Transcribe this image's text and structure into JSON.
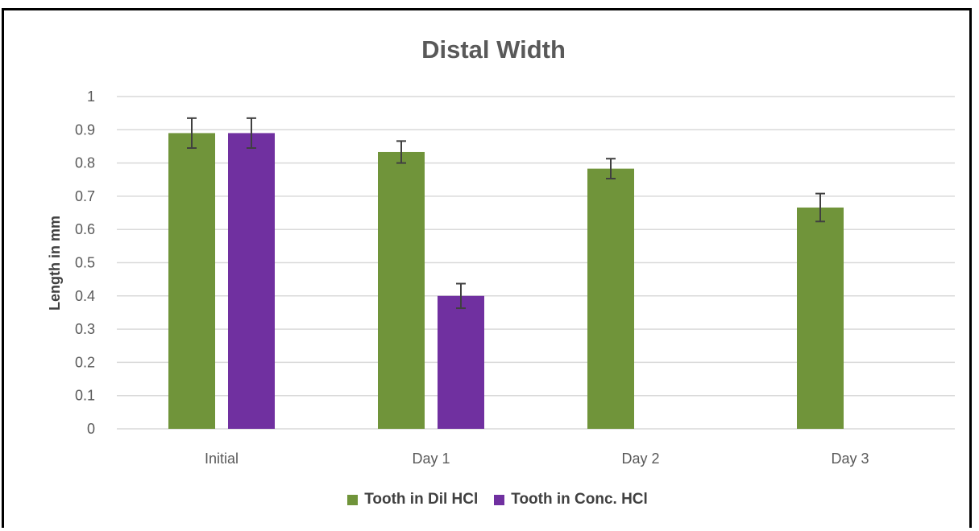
{
  "chart_data": {
    "type": "bar",
    "title": "Distal Width",
    "xlabel": "",
    "ylabel": "Length in mm",
    "categories": [
      "Initial",
      "Day 1",
      "Day 2",
      "Day 3"
    ],
    "ylim": [
      0,
      1
    ],
    "yticks": [
      "0",
      "0.1",
      "0.2",
      "0.3",
      "0.4",
      "0.5",
      "0.6",
      "0.7",
      "0.8",
      "0.9",
      "1"
    ],
    "grid": true,
    "legend_position": "bottom",
    "series": [
      {
        "name": "Tooth in Dil HCl",
        "color": "#70943a",
        "values": [
          0.89,
          0.833,
          0.783,
          0.666
        ],
        "errors": [
          0.045,
          0.033,
          0.03,
          0.042
        ]
      },
      {
        "name": "Tooth in Conc. HCl",
        "color": "#7030a0",
        "values": [
          0.89,
          0.4,
          null,
          null
        ],
        "errors": [
          0.045,
          0.037,
          null,
          null
        ]
      }
    ]
  }
}
